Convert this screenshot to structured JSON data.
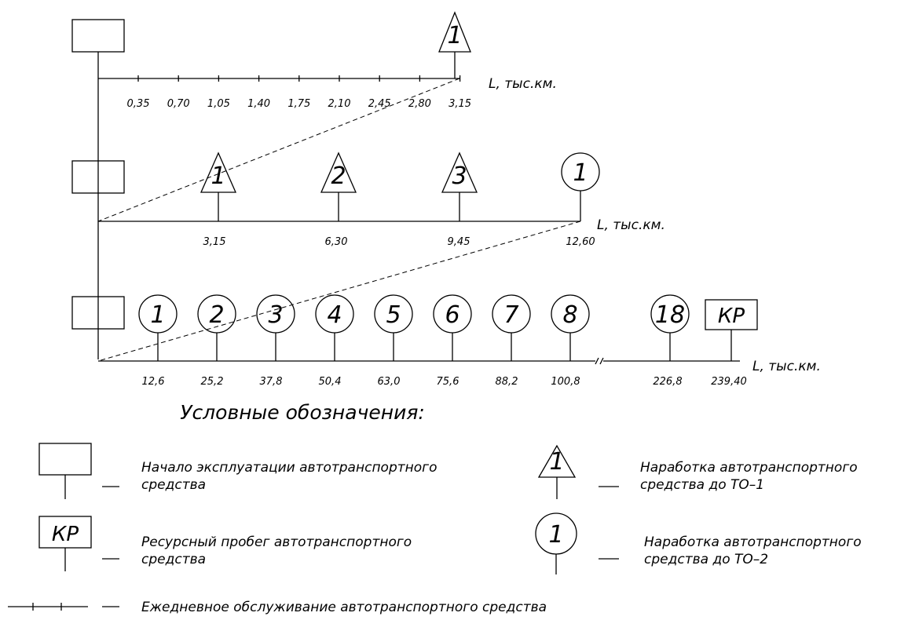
{
  "diagram": {
    "row1": {
      "axis_label": "L, тыс.км.",
      "ticks": [
        "0,35",
        "0,70",
        "1,05",
        "1,40",
        "1,75",
        "2,10",
        "2,45",
        "2,80",
        "3,15"
      ],
      "to1_marker": "1"
    },
    "row2": {
      "axis_label": "L, тыс.км.",
      "to1_markers": [
        "1",
        "2",
        "3"
      ],
      "to2_marker": "1",
      "ticks": [
        "3,15",
        "6,30",
        "9,45",
        "12,60"
      ]
    },
    "row3": {
      "axis_label": "L, тыс.км.",
      "to2_markers": [
        "1",
        "2",
        "3",
        "4",
        "5",
        "6",
        "7",
        "8",
        "18"
      ],
      "kr_label": "КР",
      "ticks": [
        "12,6",
        "25,2",
        "37,8",
        "50,4",
        "63,0",
        "75,6",
        "88,2",
        "100,8",
        "226,8",
        "239,40"
      ]
    }
  },
  "legend": {
    "title": "Условные обозначения:",
    "start_line1": "Начало эксплуатации автотранспортного",
    "start_line2": "средства",
    "kr_symbol": "КР",
    "kr_line1": "Ресурсный пробег автотранспортного",
    "kr_line2": "средства",
    "to1_symbol": "1",
    "to1_line1": "Наработка автотранспортного",
    "to1_line2": "средства до ТО–1",
    "to2_symbol": "1",
    "to2_line1": "Наработка автотранспортного",
    "to2_line2": "средства до ТО–2",
    "daily": "Ежедневное обслуживание автотранспортного средства"
  }
}
